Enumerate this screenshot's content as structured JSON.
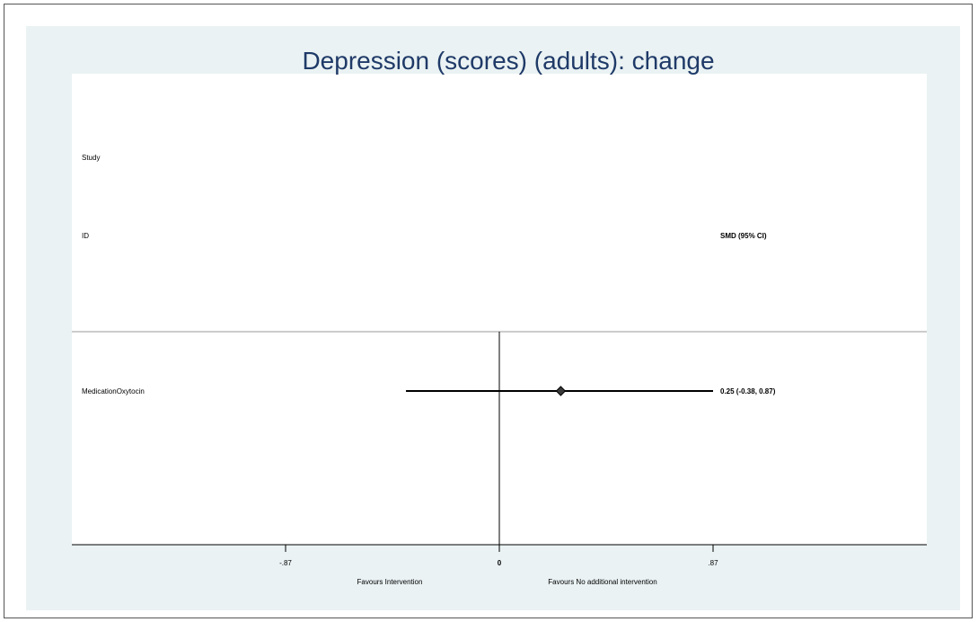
{
  "chart_data": {
    "type": "forest",
    "title": "Depression (scores) (adults): change",
    "column_headers": {
      "study_line1": "Study",
      "study_line2": "ID",
      "effect": "SMD (95% CI)"
    },
    "studies": [
      {
        "label": "MedicationOxytocin",
        "estimate": 0.25,
        "ci_lower": -0.38,
        "ci_upper": 0.87,
        "effect_text": "0.25 (-0.38, 0.87)"
      }
    ],
    "x_axis": {
      "ticks": [
        -0.87,
        0,
        0.87
      ],
      "tick_labels": [
        "-.87",
        "0",
        ".87"
      ],
      "range": [
        -1.74,
        1.74
      ],
      "null_line": 0
    },
    "favours_left": "Favours Intervention",
    "favours_right": "Favours No additional intervention",
    "colors": {
      "background_panel": "#eaf2f3",
      "plot_area": "#ffffff",
      "title": "#1f3a68",
      "marks": "#000000"
    }
  }
}
